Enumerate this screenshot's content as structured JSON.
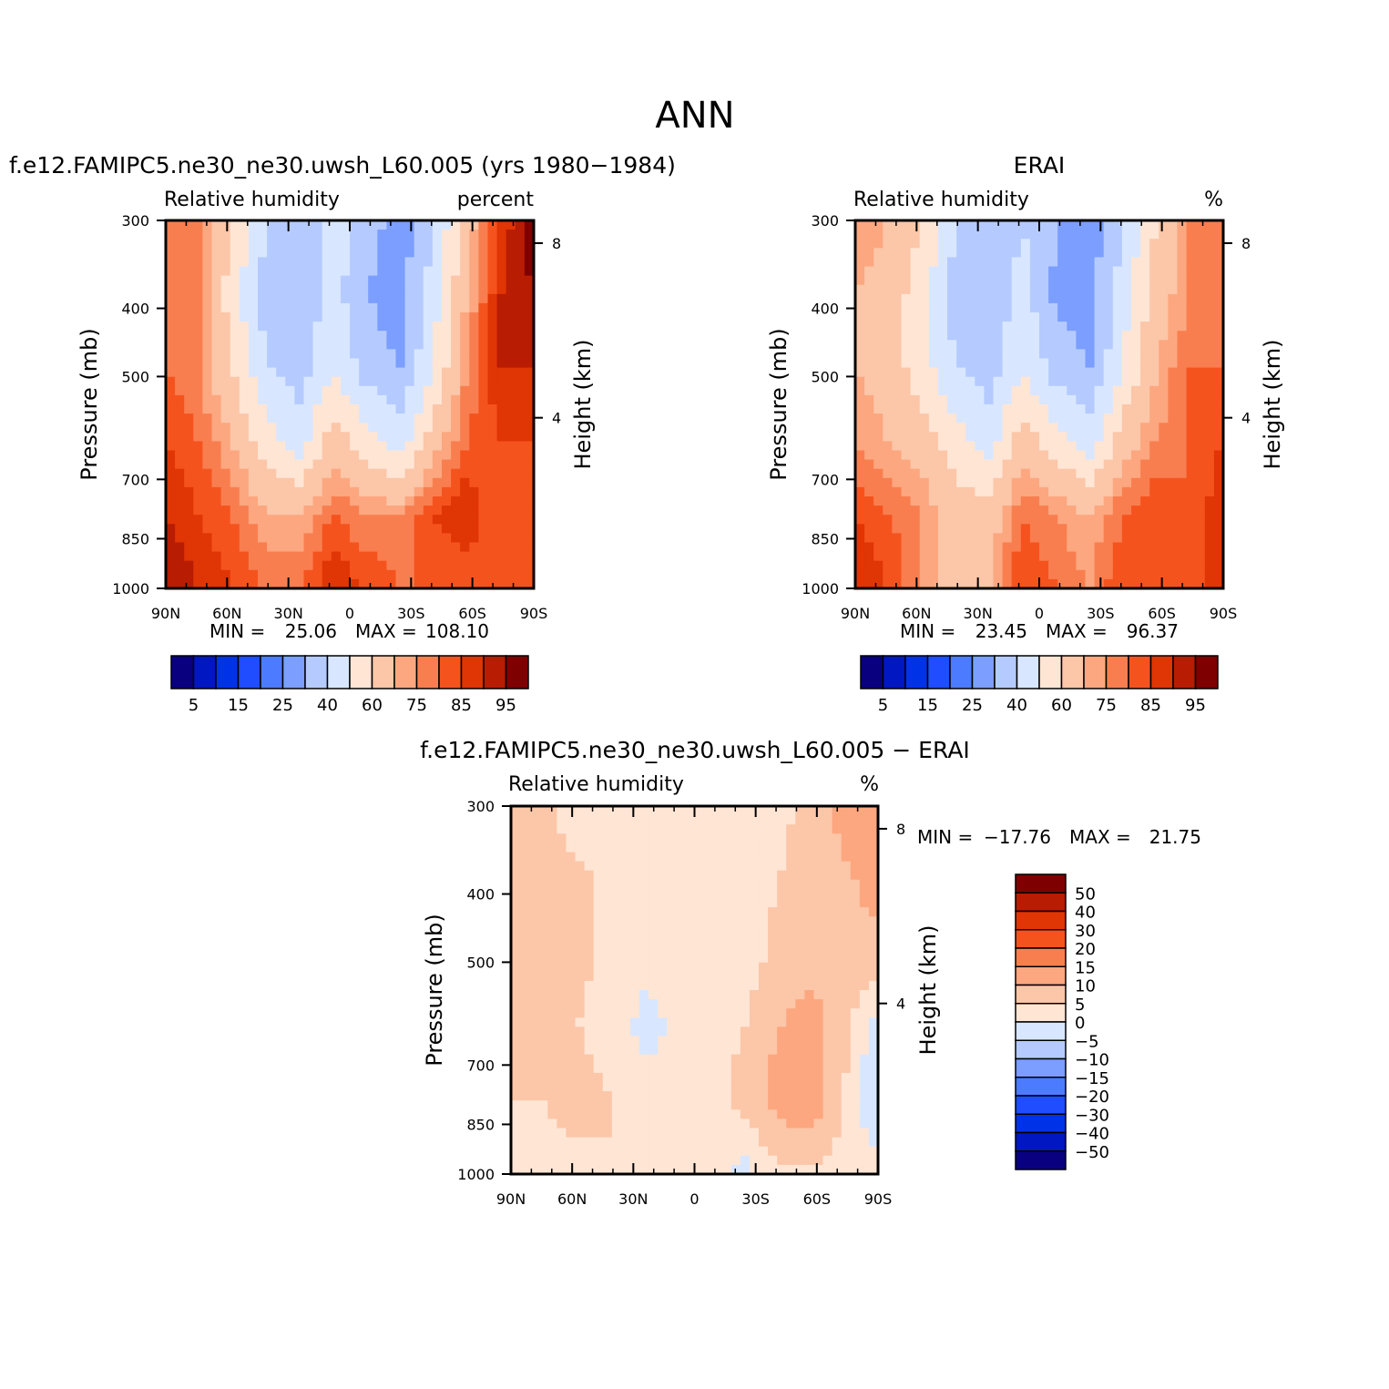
{
  "figure": {
    "title": "ANN",
    "diff_title": "f.e12.FAMIPC5.ne30_ne30.uwsh_L60.005 − ERAI"
  },
  "chart_data": [
    {
      "type": "heatmap",
      "panel": "model",
      "title": "f.e12.FAMIPC5.ne30_ne30.uwsh_L60.005 (yrs 1980−1984)",
      "left_label": "Relative humidity",
      "right_label": "percent",
      "xlabel": "",
      "ylabel": "Pressure (mb)",
      "ylabel_right": "Height (km)",
      "x_ticks": [
        "90N",
        "60N",
        "30N",
        "0",
        "30S",
        "60S",
        "90S"
      ],
      "y_ticks": [
        300,
        400,
        500,
        700,
        850,
        1000
      ],
      "y_ticks_right": [
        8,
        4
      ],
      "ylim": [
        1000,
        300
      ],
      "y_scale": "log",
      "xlim": [
        90,
        -90
      ],
      "min_label": "MIN =",
      "min_value": "25.06",
      "max_label": "MAX =",
      "max_value": "108.10",
      "colorbar": {
        "orientation": "horizontal",
        "labels": [
          "5",
          "15",
          "25",
          "40",
          "60",
          "75",
          "85",
          "95"
        ],
        "levels": [
          5,
          10,
          15,
          20,
          25,
          30,
          40,
          50,
          60,
          70,
          75,
          80,
          85,
          90,
          95
        ],
        "colors": [
          "#08007f",
          "#0017c2",
          "#0033e8",
          "#1f4dff",
          "#4d7bff",
          "#7b9eff",
          "#b5cbff",
          "#d8e7ff",
          "#ffe5d4",
          "#fcc6a8",
          "#fca77f",
          "#f97e4f",
          "#f5531e",
          "#e03505",
          "#b81c02",
          "#7f0000"
        ]
      },
      "field": [
        [
          80,
          75,
          60,
          40,
          30,
          45,
          35,
          25,
          40,
          65,
          85,
          100
        ],
        [
          80,
          75,
          55,
          35,
          30,
          45,
          30,
          25,
          45,
          70,
          90,
          95
        ],
        [
          80,
          75,
          60,
          40,
          35,
          50,
          35,
          30,
          50,
          75,
          90,
          90
        ],
        [
          85,
          80,
          70,
          55,
          45,
          65,
          55,
          45,
          65,
          80,
          85,
          85
        ],
        [
          90,
          85,
          80,
          70,
          70,
          80,
          75,
          75,
          85,
          90,
          80,
          80
        ],
        [
          95,
          90,
          85,
          80,
          80,
          90,
          85,
          80,
          80,
          80,
          80,
          80
        ]
      ]
    },
    {
      "type": "heatmap",
      "panel": "obs",
      "title": "ERAI",
      "left_label": "Relative humidity",
      "right_label": "%",
      "xlabel": "",
      "ylabel": "Pressure (mb)",
      "ylabel_right": "Height (km)",
      "x_ticks": [
        "90N",
        "60N",
        "30N",
        "0",
        "30S",
        "60S",
        "90S"
      ],
      "y_ticks": [
        300,
        400,
        500,
        700,
        850,
        1000
      ],
      "y_ticks_right": [
        8,
        4
      ],
      "ylim": [
        1000,
        300
      ],
      "y_scale": "log",
      "xlim": [
        90,
        -90
      ],
      "min_label": "MIN =",
      "min_value": "23.45",
      "max_label": "MAX =",
      "max_value": "96.37",
      "colorbar": {
        "orientation": "horizontal",
        "labels": [
          "5",
          "15",
          "25",
          "40",
          "60",
          "75",
          "85",
          "95"
        ],
        "levels": [
          5,
          10,
          15,
          20,
          25,
          30,
          40,
          50,
          60,
          70,
          75,
          80,
          85,
          90,
          95
        ],
        "colors": [
          "#08007f",
          "#0017c2",
          "#0033e8",
          "#1f4dff",
          "#4d7bff",
          "#7b9eff",
          "#b5cbff",
          "#d8e7ff",
          "#ffe5d4",
          "#fcc6a8",
          "#fca77f",
          "#f97e4f",
          "#f5531e",
          "#e03505",
          "#b81c02",
          "#7f0000"
        ]
      },
      "field": [
        [
          75,
          70,
          60,
          40,
          30,
          40,
          30,
          25,
          40,
          60,
          75,
          80
        ],
        [
          70,
          65,
          55,
          35,
          30,
          45,
          28,
          25,
          45,
          65,
          75,
          80
        ],
        [
          70,
          65,
          55,
          40,
          35,
          50,
          35,
          30,
          50,
          70,
          80,
          80
        ],
        [
          75,
          70,
          65,
          55,
          45,
          65,
          55,
          45,
          65,
          75,
          80,
          85
        ],
        [
          85,
          80,
          75,
          65,
          65,
          80,
          75,
          70,
          80,
          85,
          80,
          90
        ],
        [
          90,
          85,
          75,
          65,
          70,
          85,
          80,
          75,
          85,
          85,
          80,
          90
        ]
      ]
    },
    {
      "type": "heatmap",
      "panel": "difference",
      "title": "f.e12.FAMIPC5.ne30_ne30.uwsh_L60.005 − ERAI",
      "left_label": "Relative humidity",
      "right_label": "%",
      "xlabel": "",
      "ylabel": "Pressure (mb)",
      "ylabel_right": "Height (km)",
      "x_ticks": [
        "90N",
        "60N",
        "30N",
        "0",
        "30S",
        "60S",
        "90S"
      ],
      "y_ticks": [
        300,
        400,
        500,
        700,
        850,
        1000
      ],
      "y_ticks_right": [
        8,
        4
      ],
      "ylim": [
        1000,
        300
      ],
      "y_scale": "log",
      "xlim": [
        90,
        -90
      ],
      "min_label": "MIN =",
      "min_value": "−17.76",
      "max_label": "MAX =",
      "max_value": "21.75",
      "colorbar": {
        "orientation": "vertical",
        "labels": [
          "50",
          "40",
          "30",
          "20",
          "15",
          "10",
          "5",
          "0",
          "−5",
          "−10",
          "−15",
          "−20",
          "−30",
          "−40",
          "−50"
        ],
        "levels": [
          -50,
          -40,
          -30,
          -20,
          -15,
          -10,
          -5,
          0,
          5,
          10,
          15,
          20,
          30,
          40,
          50
        ],
        "colors": [
          "#08007f",
          "#0017c2",
          "#0033e8",
          "#1f4dff",
          "#4d7bff",
          "#7b9eff",
          "#b5cbff",
          "#d8e7ff",
          "#ffe5d4",
          "#fcc6a8",
          "#fca77f",
          "#f97e4f",
          "#f5531e",
          "#e03505",
          "#b81c02",
          "#7f0000"
        ]
      },
      "field": [
        [
          8,
          6,
          3,
          3,
          2,
          3,
          2,
          3,
          3,
          7,
          12,
          15
        ],
        [
          8,
          6,
          6,
          4,
          2,
          1,
          2,
          3,
          5,
          8,
          9,
          12
        ],
        [
          7,
          8,
          6,
          4,
          2,
          2,
          2,
          3,
          6,
          8,
          10,
          8
        ],
        [
          6,
          8,
          5,
          3,
          -2,
          1,
          3,
          5,
          10,
          12,
          6,
          -3
        ],
        [
          5,
          5,
          7,
          5,
          3,
          1,
          3,
          7,
          12,
          14,
          5,
          -6
        ],
        [
          3,
          4,
          3,
          5,
          3,
          0,
          2,
          -2,
          4,
          4,
          3,
          2
        ]
      ]
    }
  ]
}
